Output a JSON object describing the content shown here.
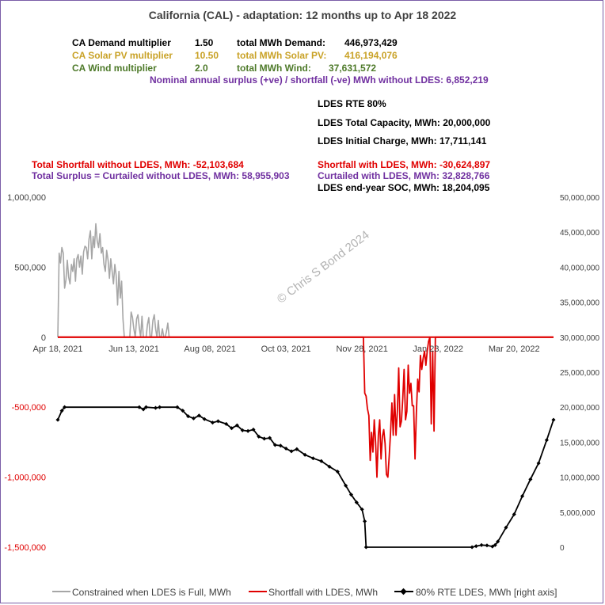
{
  "title": "California (CAL) - adaptation:  12 months up to  Apr 18 2022",
  "info": {
    "demand_mult_label": "CA Demand multiplier",
    "demand_mult_value": "1.50",
    "solar_mult_label": "CA Solar PV multiplier",
    "solar_mult_value": "10.50",
    "wind_mult_label": "CA Wind multiplier",
    "wind_mult_value": "2.0",
    "total_demand_label": "total MWh Demand:",
    "total_demand_value": "446,973,429",
    "total_solar_label": "total MWh Solar PV:",
    "total_solar_value": "416,194,076",
    "total_wind_label": "total MWh Wind:",
    "total_wind_value": "37,631,572",
    "surplus_line": "Nominal annual surplus (+ve) / shortfall (-ve) MWh without LDES:  6,852,219",
    "rte_line": "LDES RTE 80%",
    "capacity_line": "LDES Total Capacity, MWh:  20,000,000",
    "initial_line": "LDES Initial Charge, MWh:  17,711,141",
    "shortfall_no_ldes": "Total Shortfall without LDES, MWh: -52,103,684",
    "surplus_no_ldes": "Total Surplus = Curtailed without LDES, MWh: 58,955,903",
    "shortfall_ldes": "Shortfall with LDES, MWh: -30,624,897",
    "curtailed_ldes": "Curtailed with LDES, MWh: 32,828,766",
    "soc_ldes": "LDES end-year SOC, MWh: 18,204,095"
  },
  "watermark": "© Chris S Bond  2024",
  "colors": {
    "constrained": "#a6a6a6",
    "shortfall": "#e00000",
    "ldes": "#000000",
    "border": "#7b5ea7",
    "gold": "#c9a227",
    "green": "#4e7a2a",
    "purple": "#7030a0"
  },
  "chart_data": {
    "type": "line",
    "x_start": "Apr 18, 2021",
    "x_tick_labels": [
      "Apr 18, 2021",
      "Jun 13, 2021",
      "Aug 08, 2021",
      "Oct 03, 2021",
      "Nov 28, 2021",
      "Jan 23, 2022",
      "Mar 20, 2022"
    ],
    "x_tick_days": [
      0,
      56,
      112,
      168,
      224,
      280,
      336
    ],
    "xlim_days": [
      0,
      365
    ],
    "left_axis": {
      "ylim": [
        -1500000,
        1000000
      ],
      "ticks": [
        1000000,
        500000,
        0,
        -500000,
        -1000000,
        -1500000
      ],
      "tick_labels": [
        "1,000,000",
        "500,000",
        "0",
        "-500,000",
        "-1,000,000",
        "-1,500,000"
      ],
      "tick_colors": [
        "#404040",
        "#404040",
        "#404040",
        "#e00000",
        "#e00000",
        "#e00000"
      ]
    },
    "right_axis": {
      "ylim": [
        0,
        50000000
      ],
      "ticks": [
        50000000,
        45000000,
        40000000,
        35000000,
        30000000,
        25000000,
        20000000,
        15000000,
        10000000,
        5000000,
        0
      ],
      "tick_labels": [
        "50,000,000",
        "45,000,000",
        "40,000,000",
        "35,000,000",
        "30,000,000",
        "25,000,000",
        "20,000,000",
        "15,000,000",
        "10,000,000",
        "5,000,000",
        "0"
      ]
    },
    "series": [
      {
        "name": "Constrained when LDES is Full, MWh",
        "axis": "left",
        "color": "#a6a6a6",
        "points": [
          [
            0,
            0
          ],
          [
            1,
            600000
          ],
          [
            2,
            530000
          ],
          [
            3,
            640000
          ],
          [
            4,
            600000
          ],
          [
            5,
            350000
          ],
          [
            6,
            410000
          ],
          [
            7,
            550000
          ],
          [
            8,
            430000
          ],
          [
            9,
            380000
          ],
          [
            10,
            520000
          ],
          [
            11,
            470000
          ],
          [
            12,
            560000
          ],
          [
            13,
            400000
          ],
          [
            14,
            560000
          ],
          [
            15,
            590000
          ],
          [
            16,
            500000
          ],
          [
            17,
            580000
          ],
          [
            18,
            450000
          ],
          [
            19,
            610000
          ],
          [
            20,
            650000
          ],
          [
            21,
            640000
          ],
          [
            22,
            560000
          ],
          [
            23,
            700000
          ],
          [
            24,
            760000
          ],
          [
            25,
            560000
          ],
          [
            26,
            720000
          ],
          [
            27,
            640000
          ],
          [
            28,
            810000
          ],
          [
            29,
            690000
          ],
          [
            30,
            640000
          ],
          [
            31,
            740000
          ],
          [
            32,
            600000
          ],
          [
            33,
            640000
          ],
          [
            34,
            520000
          ],
          [
            35,
            470000
          ],
          [
            36,
            620000
          ],
          [
            37,
            550000
          ],
          [
            38,
            420000
          ],
          [
            39,
            560000
          ],
          [
            40,
            470000
          ],
          [
            41,
            380000
          ],
          [
            42,
            520000
          ],
          [
            43,
            440000
          ],
          [
            44,
            230000
          ],
          [
            45,
            470000
          ],
          [
            46,
            280000
          ],
          [
            47,
            400000
          ],
          [
            48,
            130000
          ],
          [
            49,
            0
          ],
          [
            50,
            0
          ],
          [
            51,
            0
          ],
          [
            52,
            0
          ],
          [
            53,
            0
          ],
          [
            54,
            180000
          ],
          [
            55,
            140000
          ],
          [
            56,
            60000
          ],
          [
            57,
            0
          ],
          [
            58,
            130000
          ],
          [
            59,
            160000
          ],
          [
            60,
            70000
          ],
          [
            61,
            0
          ],
          [
            62,
            150000
          ],
          [
            63,
            0
          ],
          [
            64,
            0
          ],
          [
            65,
            0
          ],
          [
            66,
            90000
          ],
          [
            67,
            140000
          ],
          [
            68,
            0
          ],
          [
            69,
            0
          ],
          [
            70,
            120000
          ],
          [
            71,
            160000
          ],
          [
            72,
            60000
          ],
          [
            73,
            0
          ],
          [
            74,
            120000
          ],
          [
            75,
            0
          ],
          [
            76,
            0
          ],
          [
            77,
            60000
          ],
          [
            78,
            0
          ],
          [
            79,
            0
          ],
          [
            80,
            40000
          ],
          [
            81,
            100000
          ],
          [
            82,
            0
          ],
          [
            83,
            0
          ],
          [
            365,
            0
          ]
        ]
      },
      {
        "name": "Shortfall with LDES, MWh",
        "axis": "left",
        "color": "#e00000",
        "points": [
          [
            0,
            0
          ],
          [
            225,
            0
          ],
          [
            226,
            -400000
          ],
          [
            227,
            -420000
          ],
          [
            228,
            -510000
          ],
          [
            229,
            -560000
          ],
          [
            230,
            -880000
          ],
          [
            231,
            -680000
          ],
          [
            232,
            -820000
          ],
          [
            233,
            -590000
          ],
          [
            234,
            -750000
          ],
          [
            235,
            -1000000
          ],
          [
            236,
            -700000
          ],
          [
            237,
            -590000
          ],
          [
            238,
            -870000
          ],
          [
            239,
            -710000
          ],
          [
            240,
            -660000
          ],
          [
            241,
            -760000
          ],
          [
            242,
            -980000
          ],
          [
            243,
            -1000000
          ],
          [
            244,
            -850000
          ],
          [
            245,
            -680000
          ],
          [
            246,
            -470000
          ],
          [
            247,
            -700000
          ],
          [
            248,
            -410000
          ],
          [
            249,
            -700000
          ],
          [
            250,
            -530000
          ],
          [
            251,
            -220000
          ],
          [
            252,
            -640000
          ],
          [
            253,
            -600000
          ],
          [
            254,
            -440000
          ],
          [
            255,
            -230000
          ],
          [
            256,
            -590000
          ],
          [
            257,
            -530000
          ],
          [
            258,
            -200000
          ],
          [
            259,
            -400000
          ],
          [
            260,
            -330000
          ],
          [
            261,
            -490000
          ],
          [
            262,
            -490000
          ],
          [
            263,
            -870000
          ],
          [
            264,
            -540000
          ],
          [
            265,
            -300000
          ],
          [
            266,
            -390000
          ],
          [
            267,
            -130000
          ],
          [
            268,
            -230000
          ],
          [
            269,
            -150000
          ],
          [
            270,
            -100000
          ],
          [
            271,
            -200000
          ],
          [
            272,
            -100000
          ],
          [
            273,
            -30000
          ],
          [
            274,
            0
          ],
          [
            275,
            -620000
          ],
          [
            276,
            -100000
          ],
          [
            277,
            -670000
          ],
          [
            278,
            0
          ],
          [
            279,
            0
          ],
          [
            365,
            0
          ]
        ]
      },
      {
        "name": "80%  RTE LDES, MWh [right axis]",
        "axis": "right",
        "color": "#000000",
        "points": [
          [
            0,
            18200000
          ],
          [
            3,
            19500000
          ],
          [
            5,
            20000000
          ],
          [
            60,
            20000000
          ],
          [
            63,
            19700000
          ],
          [
            65,
            20000000
          ],
          [
            72,
            19900000
          ],
          [
            75,
            20000000
          ],
          [
            88,
            20000000
          ],
          [
            92,
            19500000
          ],
          [
            96,
            18700000
          ],
          [
            100,
            18400000
          ],
          [
            104,
            18800000
          ],
          [
            108,
            18300000
          ],
          [
            114,
            17800000
          ],
          [
            118,
            18000000
          ],
          [
            124,
            17600000
          ],
          [
            128,
            17000000
          ],
          [
            132,
            17400000
          ],
          [
            136,
            16700000
          ],
          [
            140,
            16600000
          ],
          [
            144,
            16800000
          ],
          [
            148,
            15800000
          ],
          [
            152,
            15500000
          ],
          [
            156,
            15600000
          ],
          [
            160,
            14600000
          ],
          [
            164,
            14500000
          ],
          [
            168,
            14100000
          ],
          [
            172,
            13700000
          ],
          [
            176,
            14000000
          ],
          [
            182,
            13200000
          ],
          [
            188,
            12700000
          ],
          [
            194,
            12300000
          ],
          [
            200,
            11500000
          ],
          [
            206,
            10800000
          ],
          [
            212,
            8800000
          ],
          [
            216,
            7500000
          ],
          [
            220,
            6400000
          ],
          [
            224,
            5400000
          ],
          [
            226,
            3700000
          ],
          [
            227,
            0
          ],
          [
            305,
            0
          ],
          [
            308,
            150000
          ],
          [
            312,
            300000
          ],
          [
            316,
            250000
          ],
          [
            320,
            100000
          ],
          [
            322,
            300000
          ],
          [
            324,
            800000
          ],
          [
            330,
            2800000
          ],
          [
            336,
            4700000
          ],
          [
            342,
            7300000
          ],
          [
            348,
            9700000
          ],
          [
            354,
            12000000
          ],
          [
            360,
            15300000
          ],
          [
            365,
            18200000
          ]
        ]
      }
    ],
    "legend_position": "bottom",
    "grid": false
  }
}
